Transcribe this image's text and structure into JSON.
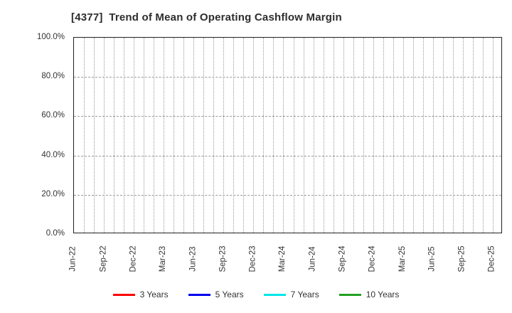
{
  "chart_data": {
    "type": "line",
    "title": "[4377]  Trend of Mean of Operating Cashflow Margin",
    "xlabel": "",
    "ylabel": "",
    "ylim": [
      0,
      100
    ],
    "y_tick_values": [
      0,
      20,
      40,
      60,
      80,
      100
    ],
    "y_tick_labels": [
      "0.0%",
      "20.0%",
      "40.0%",
      "60.0%",
      "80.0%",
      "100.0%"
    ],
    "x_tick_labels": [
      "Jun-22",
      "Sep-22",
      "Dec-22",
      "Mar-23",
      "Jun-23",
      "Sep-23",
      "Dec-23",
      "Mar-24",
      "Jun-24",
      "Sep-24",
      "Dec-24",
      "Mar-25",
      "Jun-25",
      "Sep-25",
      "Dec-25"
    ],
    "x_tick_month_step": 3,
    "x_month_count": 43,
    "grid": true,
    "minor_vertical_gridlines": "monthly-dotted",
    "major_horizontal_gridlines": "dashed-every-20-percent",
    "legend_position": "bottom",
    "series": [
      {
        "name": "3 Years",
        "color": "#ff0000",
        "values": []
      },
      {
        "name": "5 Years",
        "color": "#0000ee",
        "values": []
      },
      {
        "name": "7 Years",
        "color": "#00e6e6",
        "values": []
      },
      {
        "name": "10 Years",
        "color": "#22a022",
        "values": []
      }
    ],
    "plot_is_empty": true
  }
}
